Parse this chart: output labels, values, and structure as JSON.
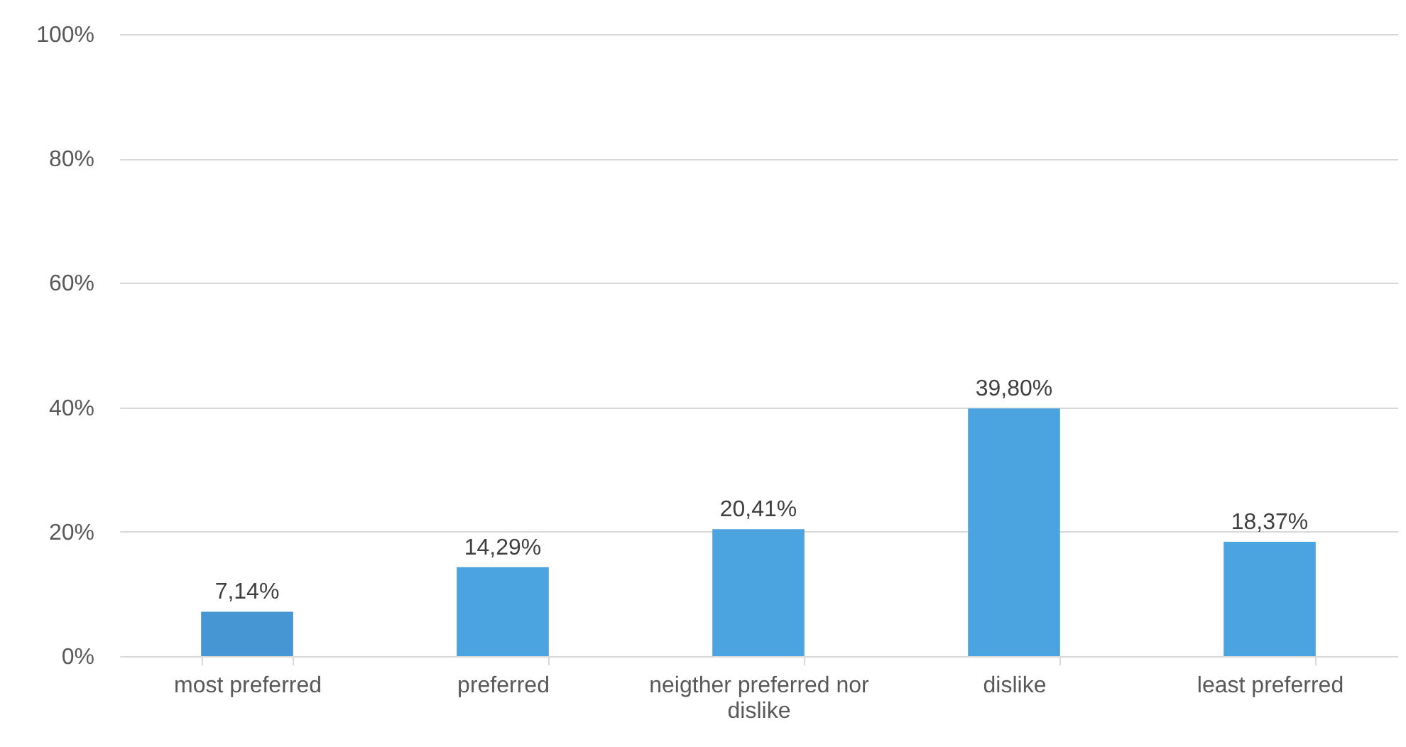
{
  "chart_data": {
    "type": "bar",
    "categories": [
      "most preferred",
      "preferred",
      "neigther preferred nor dislike",
      "dislike",
      "least preferred"
    ],
    "values": [
      7.14,
      14.29,
      20.41,
      39.8,
      18.37
    ],
    "colors": [
      "#4696d3",
      "#4ba3df",
      "#4ba3df",
      "#4ba3df",
      "#4ba3df"
    ],
    "value_labels": [
      "7,14%",
      "14,29%",
      "20,41%",
      "39,80%",
      "18,37%"
    ],
    "ylim": [
      0,
      100
    ],
    "yticks": [
      {
        "value": 0,
        "label": "0%"
      },
      {
        "value": 20,
        "label": "20%"
      },
      {
        "value": 40,
        "label": "40%"
      },
      {
        "value": 60,
        "label": "60%"
      },
      {
        "value": 80,
        "label": "80%"
      },
      {
        "value": 100,
        "label": "100%"
      }
    ],
    "grid": "y"
  }
}
